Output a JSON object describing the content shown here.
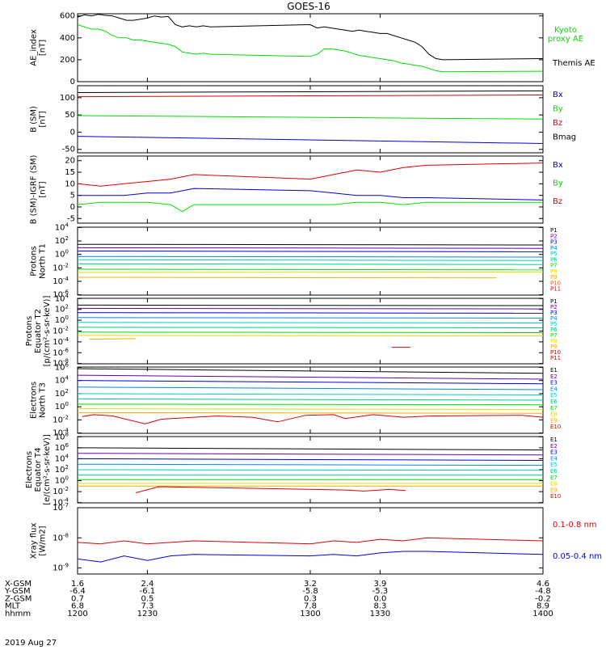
{
  "title": "GOES-16",
  "date_label": "2019 Aug 27",
  "footer": {
    "rows": [
      {
        "label": "X-GSM",
        "values": [
          "1.6",
          "2.4",
          "3.2",
          "3.9",
          "4.6"
        ]
      },
      {
        "label": "Y-GSM",
        "values": [
          "-6.4",
          "-6.1",
          "-5.8",
          "-5.3",
          "-4.8"
        ]
      },
      {
        "label": "Z-GSM",
        "values": [
          "0.7",
          "0.5",
          "0.3",
          "0.0",
          "-0.2"
        ]
      },
      {
        "label": "MLT",
        "values": [
          "6.8",
          "7.3",
          "7.8",
          "8.3",
          "8.9"
        ]
      },
      {
        "label": "hhmm",
        "values": [
          "1200",
          "1230",
          "1300",
          "1330",
          "1400"
        ]
      }
    ]
  },
  "colors": {
    "black": "#000000",
    "green": "#00dd00",
    "red": "#dd0000",
    "blue": "#0000dd",
    "proton_channels": [
      "#000000",
      "#6600aa",
      "#0000dd",
      "#0088dd",
      "#00cccc",
      "#00cc88",
      "#00dd00",
      "#dddd00",
      "#ffaa00",
      "#ff5500",
      "#dd0000"
    ],
    "electron_channels": [
      "#000000",
      "#6600aa",
      "#0000dd",
      "#0088dd",
      "#00cccc",
      "#00cc88",
      "#00dd00",
      "#dddd00",
      "#ffaa00",
      "#ff5500"
    ]
  },
  "chart_data": [
    {
      "type": "line",
      "ylabel": "AE_index\n[nT]",
      "ylim": [
        0,
        620
      ],
      "yticks": [
        0,
        200,
        400,
        600
      ],
      "legend": [
        "Kyoto",
        "proxy AE",
        "Themis AE"
      ],
      "series": [
        {
          "name": "Themis AE",
          "color": "#000000",
          "x": [
            1200,
            1203,
            1206,
            1209,
            1212,
            1215,
            1218,
            1221,
            1224,
            1227,
            1230,
            1233,
            1236,
            1239,
            1242,
            1245,
            1248,
            1251,
            1254,
            1257,
            1300,
            1303,
            1306,
            1309,
            1312,
            1315,
            1318,
            1321,
            1324,
            1327,
            1330,
            1333,
            1336,
            1339,
            1342,
            1345,
            1348,
            1351,
            1354,
            1357,
            1400
          ],
          "y": [
            590,
            610,
            600,
            615,
            605,
            600,
            580,
            560,
            560,
            570,
            580,
            600,
            590,
            595,
            520,
            500,
            510,
            500,
            510,
            500,
            520,
            490,
            500,
            490,
            480,
            470,
            460,
            470,
            460,
            450,
            440,
            440,
            420,
            400,
            380,
            360,
            320,
            250,
            210,
            200,
            210
          ]
        },
        {
          "name": "Kyoto proxy AE",
          "color": "#00dd00",
          "x": [
            1200,
            1203,
            1206,
            1209,
            1212,
            1215,
            1218,
            1221,
            1224,
            1227,
            1230,
            1233,
            1236,
            1239,
            1242,
            1245,
            1248,
            1251,
            1254,
            1257,
            1300,
            1303,
            1306,
            1309,
            1312,
            1315,
            1318,
            1321,
            1324,
            1327,
            1330,
            1333,
            1336,
            1339,
            1342,
            1345,
            1348,
            1351,
            1354,
            1357,
            1400
          ],
          "y": [
            520,
            500,
            480,
            480,
            460,
            420,
            400,
            400,
            380,
            380,
            370,
            360,
            350,
            340,
            320,
            270,
            260,
            250,
            260,
            250,
            230,
            250,
            300,
            300,
            290,
            280,
            260,
            240,
            230,
            220,
            210,
            200,
            190,
            170,
            160,
            150,
            140,
            120,
            100,
            90,
            95
          ]
        }
      ]
    },
    {
      "type": "line",
      "ylabel": "B (SM)\n[nT]",
      "ylim": [
        -60,
        135
      ],
      "yticks": [
        -50,
        0,
        50,
        100
      ],
      "legend": [
        "Bx",
        "By",
        "Bz",
        "Bmag"
      ],
      "series": [
        {
          "name": "Bmag",
          "color": "#000000",
          "x": [
            1200,
            1400
          ],
          "y": [
            115,
            120
          ]
        },
        {
          "name": "Bz",
          "color": "#dd0000",
          "x": [
            1200,
            1400
          ],
          "y": [
            103,
            108
          ]
        },
        {
          "name": "By",
          "color": "#00dd00",
          "x": [
            1200,
            1400
          ],
          "y": [
            48,
            38
          ]
        },
        {
          "name": "Bx",
          "color": "#0000dd",
          "x": [
            1200,
            1400
          ],
          "y": [
            -12,
            -33
          ]
        }
      ]
    },
    {
      "type": "line",
      "ylabel": "B (SM)-IGRF (SM)\n[nT]",
      "ylim": [
        -7,
        22
      ],
      "yticks": [
        -5,
        0,
        5,
        10,
        15,
        20
      ],
      "legend": [
        "Bx",
        "By",
        "Bz"
      ],
      "series": [
        {
          "name": "Bz",
          "color": "#dd0000",
          "x": [
            1200,
            1210,
            1220,
            1230,
            1240,
            1250,
            1300,
            1310,
            1320,
            1330,
            1340,
            1350,
            1400
          ],
          "y": [
            10,
            9,
            10,
            11,
            12,
            14,
            12,
            14,
            16,
            15,
            17,
            18,
            19
          ]
        },
        {
          "name": "Bx",
          "color": "#0000dd",
          "x": [
            1200,
            1210,
            1220,
            1230,
            1240,
            1250,
            1300,
            1310,
            1320,
            1330,
            1340,
            1350,
            1400
          ],
          "y": [
            5,
            5,
            5,
            6,
            6,
            8,
            7,
            6,
            5,
            5,
            4,
            4,
            3
          ]
        },
        {
          "name": "By",
          "color": "#00dd00",
          "x": [
            1200,
            1210,
            1220,
            1230,
            1240,
            1245,
            1250,
            1300,
            1310,
            1320,
            1330,
            1340,
            1350,
            1400
          ],
          "y": [
            1,
            2,
            2,
            2,
            1,
            -2,
            1,
            1,
            1,
            2,
            2,
            1,
            2,
            2
          ]
        }
      ]
    },
    {
      "type": "line",
      "ylabel": "Protons\nNorth T1",
      "yscale": "log",
      "yticks": [
        "10^4",
        "10^2",
        "10^0",
        "10^-2",
        "10^-4",
        "10^-6"
      ],
      "legend": [
        "P1",
        "P2",
        "P3",
        "P4",
        "P5",
        "P6",
        "P7",
        "P8",
        "P9",
        "P10",
        "P11"
      ],
      "series": [
        {
          "name": "P1",
          "color": "#000000",
          "x": [
            1200,
            1400
          ],
          "y": [
            1.5,
            1.4
          ]
        },
        {
          "name": "P2",
          "color": "#6600aa",
          "x": [
            1200,
            1400
          ],
          "y": [
            1.0,
            0.9
          ]
        },
        {
          "name": "P3",
          "color": "#0000dd",
          "x": [
            1200,
            1400
          ],
          "y": [
            0.5,
            0.4
          ]
        },
        {
          "name": "P4",
          "color": "#0088dd",
          "x": [
            1200,
            1400
          ],
          "y": [
            -0.3,
            -0.4
          ]
        },
        {
          "name": "P5",
          "color": "#00cccc",
          "x": [
            1200,
            1400
          ],
          "y": [
            -0.8,
            -0.9
          ]
        },
        {
          "name": "P6",
          "color": "#00cc88",
          "x": [
            1200,
            1400
          ],
          "y": [
            -1.4,
            -1.5
          ]
        },
        {
          "name": "P7",
          "color": "#00dd00",
          "x": [
            1200,
            1400
          ],
          "y": [
            -2.2,
            -2.3
          ]
        },
        {
          "name": "P8",
          "color": "#dddd00",
          "x": [
            1200,
            1400
          ],
          "y": [
            -2.7,
            -2.6
          ]
        },
        {
          "name": "P9",
          "color": "#ffaa00",
          "x": [
            1200,
            1380
          ],
          "y": [
            -3.4,
            -3.5
          ]
        }
      ]
    },
    {
      "type": "line",
      "ylabel": "Protons\nEquator T2\n[p/(cm²-s-sr-keV)]",
      "yscale": "log",
      "yticks": [
        "10^4",
        "10^2",
        "10^0",
        "10^-2",
        "10^-4",
        "10^-6",
        "10^-8"
      ],
      "legend": [
        "P1",
        "P2",
        "P3",
        "P4",
        "P5",
        "P6",
        "P7",
        "P8",
        "P9",
        "P10",
        "P11"
      ],
      "series": [
        {
          "name": "P1",
          "color": "#000000",
          "x": [
            1200,
            1400
          ],
          "y": [
            2.8,
            2.7
          ]
        },
        {
          "name": "P2",
          "color": "#6600aa",
          "x": [
            1200,
            1400
          ],
          "y": [
            2.2,
            2.1
          ]
        },
        {
          "name": "P3",
          "color": "#0000dd",
          "x": [
            1200,
            1400
          ],
          "y": [
            1.4,
            1.3
          ]
        },
        {
          "name": "P4",
          "color": "#0088dd",
          "x": [
            1200,
            1400
          ],
          "y": [
            0.5,
            0.4
          ]
        },
        {
          "name": "P5",
          "color": "#00cccc",
          "x": [
            1200,
            1400
          ],
          "y": [
            -0.4,
            -0.5
          ]
        },
        {
          "name": "P6",
          "color": "#00cc88",
          "x": [
            1200,
            1400
          ],
          "y": [
            -1.3,
            -1.4
          ]
        },
        {
          "name": "P7",
          "color": "#00dd00",
          "x": [
            1200,
            1400
          ],
          "y": [
            -2.2,
            -2.3
          ]
        },
        {
          "name": "P8",
          "color": "#dddd00",
          "x": [
            1200,
            1400
          ],
          "y": [
            -2.8,
            -2.9
          ]
        },
        {
          "name": "P9",
          "color": "#ffaa00",
          "x": [
            1205,
            1225
          ],
          "y": [
            -3.5,
            -3.4
          ]
        },
        {
          "name": "P10",
          "color": "#dd0000",
          "x": [
            1335,
            1343
          ],
          "y": [
            -5.0,
            -5.0
          ]
        }
      ]
    },
    {
      "type": "line",
      "ylabel": "Electrons\nNorth T3",
      "yscale": "log",
      "yticks": [
        "10^6",
        "10^4",
        "10^2",
        "10^0",
        "10^-2",
        "10^-4"
      ],
      "legend": [
        "E1",
        "E2",
        "E3",
        "E4",
        "E5",
        "E6",
        "E7",
        "E8",
        "E9",
        "E10"
      ],
      "series": [
        {
          "name": "E1",
          "color": "#000000",
          "x": [
            1200,
            1400
          ],
          "y": [
            5.8,
            5.1
          ]
        },
        {
          "name": "E2",
          "color": "#6600aa",
          "x": [
            1200,
            1400
          ],
          "y": [
            4.8,
            4.2
          ]
        },
        {
          "name": "E3",
          "color": "#0000dd",
          "x": [
            1200,
            1400
          ],
          "y": [
            4.0,
            3.5
          ]
        },
        {
          "name": "E4",
          "color": "#0088dd",
          "x": [
            1200,
            1400
          ],
          "y": [
            3.0,
            2.6
          ]
        },
        {
          "name": "E5",
          "color": "#00cccc",
          "x": [
            1200,
            1400
          ],
          "y": [
            2.0,
            1.8
          ]
        },
        {
          "name": "E6",
          "color": "#00cc88",
          "x": [
            1200,
            1400
          ],
          "y": [
            1.2,
            1.0
          ]
        },
        {
          "name": "E7",
          "color": "#00dd00",
          "x": [
            1200,
            1400
          ],
          "y": [
            0.4,
            0.3
          ]
        },
        {
          "name": "E8",
          "color": "#dddd00",
          "x": [
            1200,
            1400
          ],
          "y": [
            -0.3,
            -0.4
          ]
        },
        {
          "name": "E9",
          "color": "#ffaa00",
          "x": [
            1200,
            1400
          ],
          "y": [
            -0.9,
            -1.0
          ]
        },
        {
          "name": "E10",
          "color": "#dd0000",
          "x": [
            1202,
            1207,
            1215,
            1229,
            1236,
            1250,
            1260,
            1275,
            1286,
            1298,
            1310,
            1315,
            1323,
            1327,
            1340,
            1352,
            1391,
            1400
          ],
          "y": [
            -1.5,
            -1.2,
            -1.4,
            -2.6,
            -1.9,
            -1.6,
            -1.4,
            -1.6,
            -2.3,
            -1.3,
            -1.2,
            -1.8,
            -1.4,
            -1.2,
            -1.6,
            -1.4,
            -1.3,
            -1.6
          ]
        }
      ]
    },
    {
      "type": "line",
      "ylabel": "Electrons\nEquator T4\n[e/(cm²-s-sr-keV)]",
      "yscale": "log",
      "yticks": [
        "10^8",
        "10^6",
        "10^4",
        "10^2",
        "10^0",
        "10^-2",
        "10^-4"
      ],
      "legend": [
        "E1",
        "E2",
        "E3",
        "E4",
        "E5",
        "E6",
        "E7",
        "E8",
        "E9",
        "E10"
      ],
      "series": [
        {
          "name": "E1",
          "color": "#000000",
          "x": [
            1200,
            1400
          ],
          "y": [
            6.0,
            5.6
          ]
        },
        {
          "name": "E2",
          "color": "#6600aa",
          "x": [
            1200,
            1400
          ],
          "y": [
            5.0,
            4.7
          ]
        },
        {
          "name": "E3",
          "color": "#0000dd",
          "x": [
            1200,
            1400
          ],
          "y": [
            4.0,
            3.7
          ]
        },
        {
          "name": "E4",
          "color": "#0088dd",
          "x": [
            1200,
            1400
          ],
          "y": [
            3.0,
            2.8
          ]
        },
        {
          "name": "E5",
          "color": "#00cccc",
          "x": [
            1200,
            1400
          ],
          "y": [
            2.0,
            1.9
          ]
        },
        {
          "name": "E6",
          "color": "#00cc88",
          "x": [
            1200,
            1400
          ],
          "y": [
            1.0,
            1.0
          ]
        },
        {
          "name": "E7",
          "color": "#00dd00",
          "x": [
            1200,
            1400
          ],
          "y": [
            0.2,
            0.2
          ]
        },
        {
          "name": "E8",
          "color": "#dddd00",
          "x": [
            1200,
            1400
          ],
          "y": [
            -0.5,
            -0.5
          ]
        },
        {
          "name": "E9",
          "color": "#ffaa00",
          "x": [
            1200,
            1400
          ],
          "y": [
            -1.0,
            -1.0
          ]
        },
        {
          "name": "E10",
          "color": "#dd0000",
          "x": [
            1225,
            1235,
            1315,
            1323,
            1334,
            1341
          ],
          "y": [
            -2.2,
            -1.1,
            -1.7,
            -1.9,
            -1.6,
            -1.8
          ]
        }
      ]
    },
    {
      "type": "line",
      "ylabel": "Xray flux\n[W/m2]",
      "yscale": "log",
      "yticks": [
        "10^-7",
        "10^-8",
        "10^-9"
      ],
      "legend": [
        "0.1-0.8 nm",
        "0.05-0.4 nm"
      ],
      "series": [
        {
          "name": "0.1-0.8 nm",
          "color": "#dd0000",
          "x": [
            1200,
            1210,
            1220,
            1230,
            1240,
            1250,
            1300,
            1310,
            1320,
            1330,
            1340,
            1350,
            1400
          ],
          "y": [
            -8.15,
            -8.2,
            -8.1,
            -8.2,
            -8.15,
            -8.1,
            -8.2,
            -8.1,
            -8.15,
            -8.05,
            -8.1,
            -8.0,
            -8.1
          ]
        },
        {
          "name": "0.05-0.4 nm",
          "color": "#0000dd",
          "x": [
            1200,
            1210,
            1220,
            1230,
            1240,
            1250,
            1300,
            1310,
            1320,
            1330,
            1340,
            1350,
            1400
          ],
          "y": [
            -8.7,
            -8.8,
            -8.6,
            -8.75,
            -8.6,
            -8.55,
            -8.6,
            -8.55,
            -8.6,
            -8.5,
            -8.45,
            -8.45,
            -8.55
          ]
        }
      ]
    }
  ]
}
